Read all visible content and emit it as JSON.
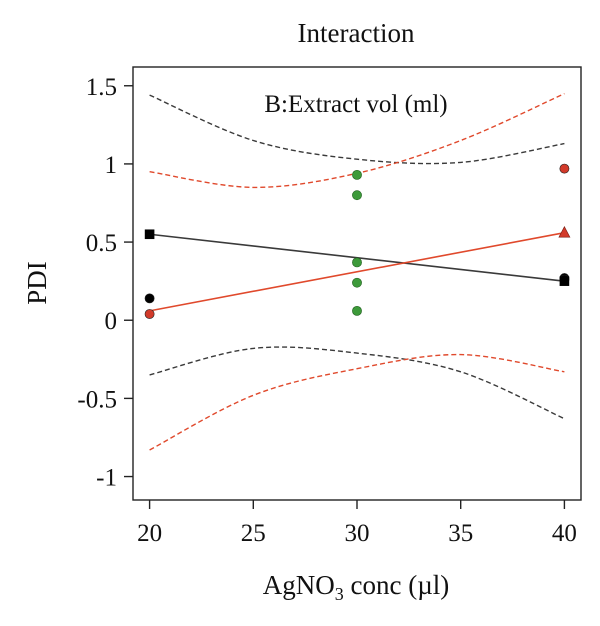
{
  "chart_data": {
    "type": "line",
    "title": "Interaction",
    "xlabel_main": "AgNO",
    "xlabel_sub": "3",
    "xlabel_rest": " conc (µl)",
    "ylabel": "PDI",
    "legend_title": "B:Extract vol (ml)",
    "xlim": [
      19.2,
      40.8
    ],
    "ylim": [
      -1.15,
      1.62
    ],
    "x_ticks": [
      20,
      25,
      30,
      35,
      40
    ],
    "y_ticks": [
      1.5,
      1,
      0.5,
      0,
      -0.5,
      -1
    ],
    "y_tick_labels": [
      "1.5",
      "1",
      "0.5",
      "0",
      "-0.5",
      "-1"
    ],
    "colors": {
      "black_series": "#3a3a3a",
      "red_series": "#e0492c",
      "center_points": "#3d9a3a",
      "red_marker": "#d23a2a"
    },
    "series": [
      {
        "marker": "square",
        "fit_line": {
          "x": [
            20,
            40
          ],
          "y": [
            0.55,
            0.25
          ]
        },
        "ci_upper": {
          "x": [
            20,
            25,
            30,
            35,
            40
          ],
          "y": [
            1.44,
            1.15,
            1.03,
            1.01,
            1.13
          ]
        },
        "ci_lower": {
          "x": [
            20,
            25,
            30,
            35,
            40
          ],
          "y": [
            -0.35,
            -0.18,
            -0.21,
            -0.33,
            -0.63
          ]
        },
        "endpoint_markers": {
          "x": [
            20,
            40
          ],
          "y": [
            0.55,
            0.25
          ]
        },
        "points": {
          "x": [
            20,
            40,
            40
          ],
          "y": [
            0.14,
            0.27,
            0.26
          ]
        }
      },
      {
        "marker": "triangle",
        "fit_line": {
          "x": [
            20,
            40
          ],
          "y": [
            0.06,
            0.56
          ]
        },
        "ci_upper": {
          "x": [
            20,
            25,
            30,
            35,
            40
          ],
          "y": [
            0.95,
            0.85,
            0.94,
            1.15,
            1.45
          ]
        },
        "ci_lower": {
          "x": [
            20,
            25,
            30,
            35,
            40
          ],
          "y": [
            -0.83,
            -0.48,
            -0.31,
            -0.22,
            -0.33
          ]
        },
        "endpoint_markers": {
          "x": [
            20,
            40
          ],
          "y": [
            0.06,
            0.56
          ]
        },
        "points": {
          "x": [
            20,
            40
          ],
          "y": [
            0.04,
            0.97
          ]
        }
      }
    ],
    "center_points": {
      "x": [
        30,
        30,
        30,
        30,
        30
      ],
      "y": [
        0.93,
        0.8,
        0.37,
        0.24,
        0.06
      ]
    }
  }
}
